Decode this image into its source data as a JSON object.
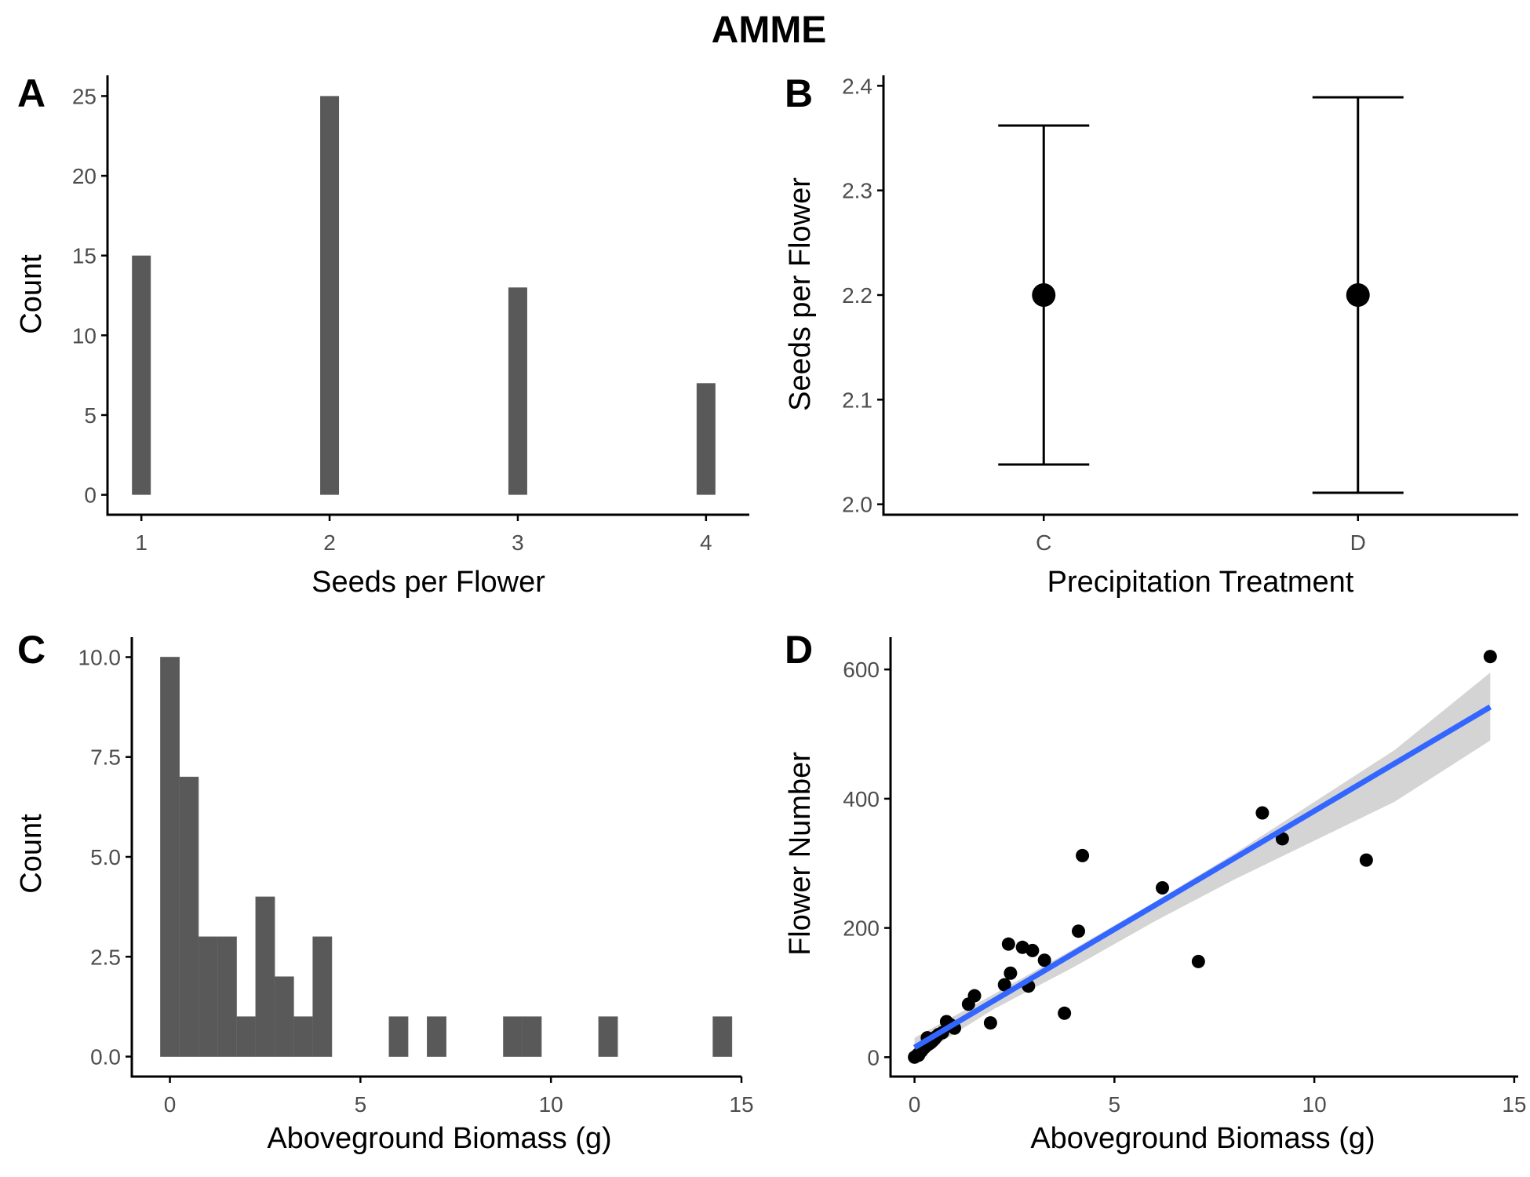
{
  "figure_title": "AMME",
  "chart_data": [
    {
      "panel": "A",
      "type": "bar",
      "title": "",
      "xlabel": "Seeds per Flower",
      "ylabel": "Count",
      "x": [
        1,
        2,
        3,
        4
      ],
      "values": [
        15,
        25,
        13,
        7
      ],
      "xlim": [
        0.82,
        4.23
      ],
      "ylim": [
        -1.25,
        26.3
      ],
      "xticks": [
        1,
        2,
        3,
        4
      ],
      "yticks": [
        0,
        5,
        10,
        15,
        20,
        25
      ],
      "bar_width": 0.1,
      "bar_color": "#595959",
      "grid": false
    },
    {
      "panel": "B",
      "type": "scatter",
      "title": "",
      "xlabel": "Precipitation Treatment",
      "ylabel": "Seeds per Flower",
      "categories": [
        "C",
        "D"
      ],
      "mean": [
        2.2,
        2.2
      ],
      "lower": [
        2.038,
        2.011
      ],
      "upper": [
        2.362,
        2.389
      ],
      "ylim": [
        1.99,
        2.41
      ],
      "yticks": [
        2.0,
        2.1,
        2.2,
        2.3,
        2.4
      ],
      "point_color": "#000000",
      "grid": false
    },
    {
      "panel": "C",
      "type": "bar",
      "title": "",
      "xlabel": "Aboveground Biomass (g)",
      "ylabel": "Count",
      "bins": [
        [
          -0.25,
          0.25
        ],
        [
          0.25,
          0.75
        ],
        [
          0.75,
          1.25
        ],
        [
          1.25,
          1.75
        ],
        [
          1.75,
          2.25
        ],
        [
          2.25,
          2.75
        ],
        [
          2.75,
          3.25
        ],
        [
          3.25,
          3.75
        ],
        [
          3.75,
          4.25
        ],
        [
          5.75,
          6.25
        ],
        [
          6.75,
          7.25
        ],
        [
          8.75,
          9.25
        ],
        [
          9.25,
          9.75
        ],
        [
          11.25,
          11.75
        ],
        [
          14.25,
          14.75
        ]
      ],
      "values": [
        10,
        7,
        3,
        3,
        1,
        4,
        2,
        1,
        3,
        1,
        1,
        1,
        1,
        1,
        1
      ],
      "xlim": [
        -1.0,
        15.0
      ],
      "ylim": [
        -0.5,
        10.5
      ],
      "xticks": [
        0,
        5,
        10,
        15
      ],
      "yticks": [
        0.0,
        2.5,
        5.0,
        7.5,
        10.0
      ],
      "ytick_labels": [
        "0.0",
        "2.5",
        "5.0",
        "7.5",
        "10.0"
      ],
      "bar_color": "#595959",
      "grid": false
    },
    {
      "panel": "D",
      "type": "scatter",
      "title": "",
      "xlabel": "Aboveground Biomass (g)",
      "ylabel": "Flower Number",
      "points": [
        [
          0.0,
          0
        ],
        [
          0.05,
          2
        ],
        [
          0.08,
          4
        ],
        [
          0.1,
          3
        ],
        [
          0.12,
          6
        ],
        [
          0.15,
          8
        ],
        [
          0.18,
          10
        ],
        [
          0.2,
          12
        ],
        [
          0.25,
          15
        ],
        [
          0.3,
          18
        ],
        [
          0.32,
          30
        ],
        [
          0.35,
          20
        ],
        [
          0.4,
          22
        ],
        [
          0.45,
          25
        ],
        [
          0.5,
          28
        ],
        [
          0.55,
          32
        ],
        [
          0.6,
          35
        ],
        [
          0.7,
          38
        ],
        [
          0.8,
          55
        ],
        [
          0.9,
          50
        ],
        [
          1.0,
          45
        ],
        [
          1.35,
          82
        ],
        [
          1.5,
          95
        ],
        [
          1.9,
          53
        ],
        [
          2.25,
          112
        ],
        [
          2.35,
          175
        ],
        [
          2.4,
          130
        ],
        [
          2.7,
          170
        ],
        [
          2.85,
          110
        ],
        [
          2.95,
          165
        ],
        [
          3.25,
          150
        ],
        [
          3.75,
          68
        ],
        [
          4.1,
          195
        ],
        [
          4.2,
          312
        ],
        [
          6.2,
          262
        ],
        [
          7.1,
          148
        ],
        [
          8.7,
          378
        ],
        [
          9.2,
          338
        ],
        [
          11.3,
          305
        ],
        [
          14.4,
          620
        ]
      ],
      "fit_line": {
        "x": [
          0,
          14.4
        ],
        "y": [
          15,
          542
        ]
      },
      "confidence_band": {
        "x": [
          0,
          2,
          4,
          6,
          8,
          10,
          12,
          14.4
        ],
        "lower": [
          -2,
          75,
          140,
          210,
          275,
          335,
          395,
          490
        ],
        "upper": [
          30,
          98,
          168,
          240,
          315,
          395,
          475,
          595
        ]
      },
      "xlim": [
        -0.6,
        15.1
      ],
      "ylim": [
        -30,
        650
      ],
      "xticks": [
        0,
        5,
        10,
        15
      ],
      "yticks": [
        0,
        200,
        400,
        600
      ],
      "point_color": "#000000",
      "line_color": "#3366ff",
      "band_color": "#cccccc",
      "grid": false
    }
  ]
}
